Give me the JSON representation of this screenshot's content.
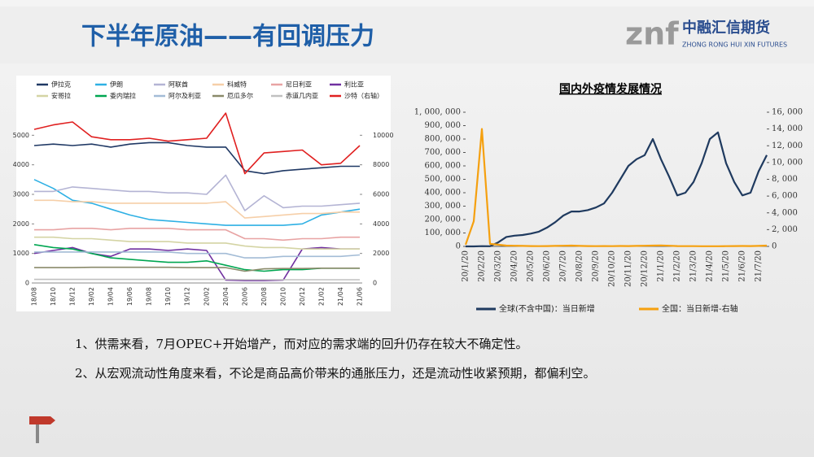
{
  "title": "下半年原油——有回调压力",
  "logo": {
    "mark": "znf",
    "name": "中融汇信期货",
    "en": "ZHONG RONG HUI XIN FUTURES"
  },
  "bullets": [
    "1、供需来看，7月OPEC+开始增产，而对应的需求端的回升仍存在较大不确定性。",
    "2、从宏观流动性角度来看，不论是商品高价带来的通胀压力，还是流动性收紧预期，都偏利空。"
  ],
  "chart_data": [
    {
      "type": "line",
      "categories": [
        "18/08",
        "18/10",
        "18/12",
        "19/02",
        "19/04",
        "19/06",
        "19/08",
        "19/10",
        "19/12",
        "20/02",
        "20/04",
        "20/06",
        "20/08",
        "20/10",
        "20/12",
        "21/02",
        "21/04",
        "21/06"
      ],
      "ylim": [
        0,
        6000
      ],
      "yticks": [
        0,
        1000,
        2000,
        3000,
        4000,
        5000
      ],
      "y2lim": [
        0,
        12000
      ],
      "y2ticks": [
        0,
        2000,
        4000,
        6000,
        8000,
        10000
      ],
      "grid": false,
      "series": [
        {
          "name": "伊拉克",
          "color": "#1f3864",
          "values": [
            4650,
            4700,
            4650,
            4700,
            4600,
            4700,
            4750,
            4750,
            4650,
            4600,
            4600,
            3800,
            3700,
            3800,
            3850,
            3900,
            3950,
            3950
          ]
        },
        {
          "name": "伊朗",
          "color": "#2eb0e4",
          "values": [
            3500,
            3200,
            2800,
            2700,
            2500,
            2300,
            2150,
            2100,
            2050,
            2000,
            1950,
            1950,
            1950,
            1950,
            2000,
            2300,
            2400,
            2500
          ]
        },
        {
          "name": "阿联酋",
          "color": "#b4b4d4",
          "values": [
            3100,
            3100,
            3250,
            3200,
            3150,
            3100,
            3100,
            3050,
            3050,
            3000,
            3650,
            2450,
            2950,
            2550,
            2600,
            2600,
            2650,
            2700
          ]
        },
        {
          "name": "科威特",
          "color": "#f6cfa8",
          "values": [
            2800,
            2800,
            2750,
            2750,
            2700,
            2700,
            2700,
            2700,
            2700,
            2700,
            2750,
            2200,
            2250,
            2300,
            2350,
            2350,
            2400,
            2400
          ]
        },
        {
          "name": "尼日利亚",
          "color": "#e8a3a3",
          "values": [
            1800,
            1800,
            1850,
            1850,
            1800,
            1850,
            1850,
            1850,
            1800,
            1800,
            1800,
            1500,
            1500,
            1450,
            1500,
            1500,
            1550,
            1550
          ]
        },
        {
          "name": "利比亚",
          "color": "#7030a0",
          "values": [
            1000,
            1100,
            1200,
            1000,
            900,
            1150,
            1150,
            1100,
            1150,
            1100,
            100,
            80,
            80,
            100,
            1150,
            1200,
            1150,
            1150
          ]
        },
        {
          "name": "安哥拉",
          "color": "#d4d4a4",
          "values": [
            1550,
            1550,
            1500,
            1500,
            1450,
            1400,
            1400,
            1400,
            1350,
            1350,
            1350,
            1250,
            1200,
            1200,
            1150,
            1150,
            1150,
            1150
          ]
        },
        {
          "name": "委内瑞拉",
          "color": "#00a651",
          "values": [
            1300,
            1200,
            1150,
            1000,
            850,
            800,
            750,
            700,
            700,
            750,
            600,
            450,
            400,
            450,
            450,
            500,
            500,
            500
          ]
        },
        {
          "name": "阿尔及利亚",
          "color": "#a3bcd6",
          "values": [
            1050,
            1050,
            1050,
            1050,
            1050,
            1050,
            1050,
            1050,
            1000,
            1000,
            1000,
            850,
            850,
            900,
            900,
            900,
            900,
            950
          ]
        },
        {
          "name": "厄瓜多尔",
          "color": "#8a8a6a",
          "values": [
            520,
            520,
            520,
            530,
            530,
            530,
            530,
            530,
            520,
            520,
            520,
            400,
            480,
            490,
            490,
            500,
            500,
            500
          ]
        },
        {
          "name": "赤道几内亚",
          "color": "#c0c0c0",
          "values": [
            120,
            120,
            120,
            120,
            120,
            120,
            120,
            120,
            120,
            120,
            120,
            110,
            110,
            110,
            110,
            110,
            110,
            110
          ]
        },
        {
          "name": "沙特（右轴）",
          "color": "#e02020",
          "axis": "y2",
          "values": [
            10400,
            10700,
            10900,
            9900,
            9700,
            9700,
            9800,
            9600,
            9700,
            9800,
            11500,
            7400,
            8800,
            8900,
            9000,
            8000,
            8100,
            9300
          ]
        }
      ]
    },
    {
      "type": "line",
      "title": "国内外疫情发展情况",
      "categories": [
        "20/1/20",
        null,
        "20/2/20",
        null,
        "20/3/20",
        null,
        "20/4/20",
        null,
        "20/5/20",
        null,
        "20/6/20",
        null,
        "20/7/20",
        null,
        "20/8/20",
        null,
        "20/9/20",
        null,
        "20/10/20",
        null,
        "20/11/20",
        null,
        "20/12/20",
        null,
        "21/1/20",
        null,
        "21/2/20",
        null,
        "21/3/20",
        null,
        "21/4/20",
        null,
        "21/5/20",
        null,
        "21/6/20",
        null,
        "21/7/20",
        null
      ],
      "ylim": [
        0,
        1000000
      ],
      "yticks": [
        0,
        {
          "value": 100000,
          "label": "100, 000"
        },
        {
          "value": 200000,
          "label": "200, 000"
        },
        {
          "value": 300000,
          "label": "300, 000"
        },
        {
          "value": 400000,
          "label": "400, 000"
        },
        {
          "value": 500000,
          "label": "500, 000"
        },
        {
          "value": 600000,
          "label": "600, 000"
        },
        {
          "value": 700000,
          "label": "700, 000"
        },
        {
          "value": 800000,
          "label": "800, 000"
        },
        {
          "value": 900000,
          "label": "900, 000"
        },
        {
          "value": 1000000,
          "label": "1, 000, 000"
        }
      ],
      "y2lim": [
        0,
        16000
      ],
      "y2ticks": [
        0,
        {
          "value": 2000,
          "label": "2, 000"
        },
        {
          "value": 4000,
          "label": "4, 000"
        },
        {
          "value": 6000,
          "label": "6, 000"
        },
        {
          "value": 8000,
          "label": "8, 000"
        },
        {
          "value": 10000,
          "label": "10, 000"
        },
        {
          "value": 12000,
          "label": "12, 000"
        },
        {
          "value": 14000,
          "label": "14, 000"
        },
        {
          "value": 16000,
          "label": "16, 000"
        }
      ],
      "grid": false,
      "series": [
        {
          "name": "全球(不含中国)：当日新增",
          "color": "#1f3a5f",
          "values": [
            0,
            0,
            2000,
            1000,
            30000,
            70000,
            80000,
            85000,
            95000,
            110000,
            140000,
            180000,
            230000,
            260000,
            260000,
            270000,
            290000,
            320000,
            400000,
            500000,
            600000,
            650000,
            680000,
            800000,
            650000,
            520000,
            380000,
            400000,
            480000,
            620000,
            800000,
            850000,
            620000,
            480000,
            380000,
            400000,
            560000,
            680000
          ]
        },
        {
          "name": "全国：当日新增-右轴",
          "color": "#f5a00f",
          "axis": "y2",
          "values": [
            200,
            3000,
            14000,
            300,
            200,
            100,
            80,
            60,
            40,
            30,
            40,
            60,
            80,
            100,
            60,
            40,
            30,
            40,
            30,
            50,
            40,
            60,
            80,
            100,
            120,
            80,
            40,
            30,
            30,
            20,
            20,
            20,
            30,
            40,
            50,
            40,
            60,
            100
          ]
        }
      ]
    }
  ]
}
